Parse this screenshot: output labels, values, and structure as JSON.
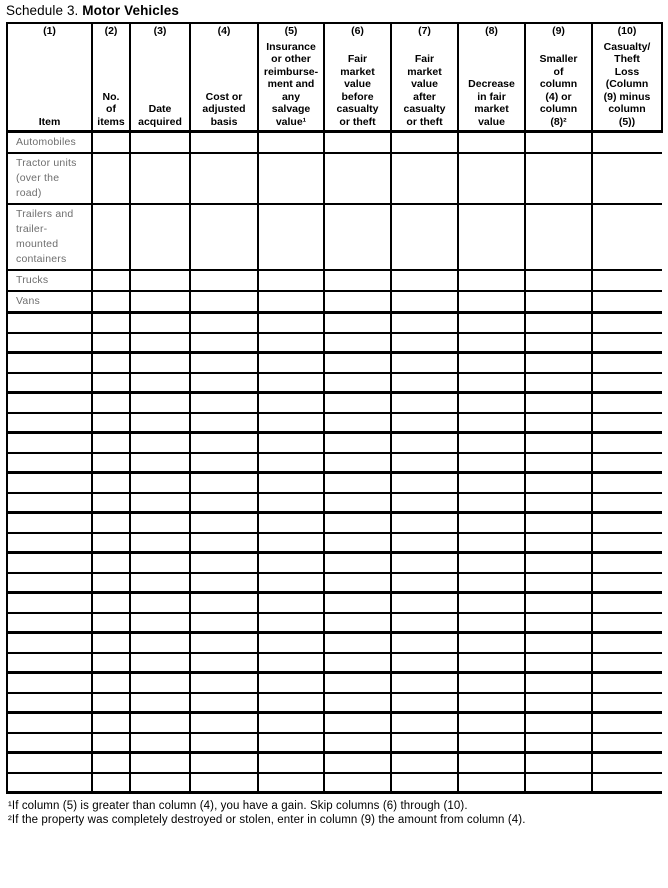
{
  "title": {
    "prefix": "Schedule 3.",
    "name": "Motor Vehicles"
  },
  "table": {
    "columns": [
      {
        "number": "(1)",
        "label": "Item"
      },
      {
        "number": "(2)",
        "label": "No.\nof\nitems"
      },
      {
        "number": "(3)",
        "label": "Date\nacquired"
      },
      {
        "number": "(4)",
        "label": "Cost or\nadjusted\nbasis"
      },
      {
        "number": "(5)",
        "label": "Insurance\nor other\nreimburse-\nment and\nany\nsalvage\nvalue¹"
      },
      {
        "number": "(6)",
        "label": "Fair\nmarket\nvalue\nbefore\ncasualty\nor theft"
      },
      {
        "number": "(7)",
        "label": "Fair\nmarket\nvalue\nafter\ncasualty\nor theft"
      },
      {
        "number": "(8)",
        "label": "Decrease\nin fair\nmarket\nvalue"
      },
      {
        "number": "(9)",
        "label": "Smaller\nof\ncolumn\n(4) or\ncolumn\n(8)²"
      },
      {
        "number": "(10)",
        "label": "Casualty/\nTheft\nLoss\n(Column\n(9) minus\ncolumn\n(5))"
      }
    ],
    "item_rows": [
      "Automobiles",
      "Tractor units\n(over the\nroad)",
      "Trailers and\ntrailer-\nmounted\ncontainers",
      "Trucks",
      "Vans"
    ],
    "empty_row_count": 24,
    "entry_values": ""
  },
  "footnotes": [
    "¹If column (5) is greater than column (4), you have a gain. Skip columns (6) through (10).",
    "²If the property was completely destroyed or stolen, enter in column (9) the amount from column (4)."
  ],
  "colors": {
    "line": "#000000",
    "text": "#000000",
    "item_label": "#6e6e6e",
    "background": "#ffffff"
  }
}
